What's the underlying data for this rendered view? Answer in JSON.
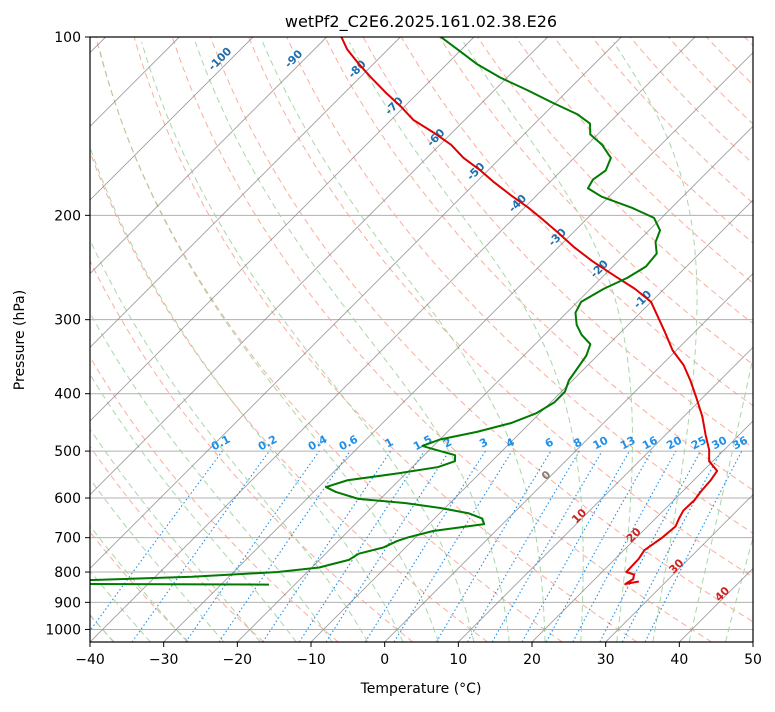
{
  "chart_data": {
    "type": "line",
    "chart_kind": "skew-T log-P diagram",
    "title": "wetPf2_C2E6.2025.161.02.38.E26",
    "xlabel": "Temperature (°C)",
    "ylabel": "Pressure (hPa)",
    "xlim": [
      -40,
      50
    ],
    "ylim": [
      1050,
      100
    ],
    "y_scale": "log",
    "grid": true,
    "x_ticks": [
      -40,
      -30,
      -20,
      -10,
      0,
      10,
      20,
      30,
      40,
      50
    ],
    "x_tick_labels": [
      "−40",
      "−30",
      "−20",
      "−10",
      "0",
      "10",
      "20",
      "30",
      "40",
      "50"
    ],
    "y_ticks": [
      100,
      200,
      300,
      400,
      500,
      600,
      700,
      800,
      900,
      1000
    ],
    "y_tick_labels": [
      "100",
      "200",
      "300",
      "400",
      "500",
      "600",
      "700",
      "800",
      "900",
      "1000"
    ],
    "colors": {
      "temperature": "#e00000",
      "dewpoint": "#007a00",
      "isotherm": "#7f7f7f",
      "dry_adiabat": "#f7a08c",
      "moist_adiabat": "#9fd39f",
      "mixing_ratio": "#1f8fe8",
      "isotherm_label": "#1f6fae",
      "zero_isotherm_label": "#808080",
      "warm_isotherm_label": "#cc2222"
    },
    "isotherm_labels": [
      "-100",
      "-90",
      "-80",
      "-70",
      "-60",
      "-50",
      "-40",
      "-30",
      "-20",
      "-10",
      "0",
      "10",
      "20",
      "30",
      "40"
    ],
    "isotherm_label_values": [
      -100,
      -90,
      -80,
      -70,
      -60,
      -50,
      -40,
      -30,
      -20,
      -10,
      0,
      10,
      20,
      30,
      40
    ],
    "mixing_ratio_labels": [
      "0.1",
      "0.2",
      "0.4",
      "0.6",
      "1",
      "1.5",
      "2",
      "3",
      "4",
      "6",
      "8",
      "10",
      "13",
      "16",
      "20",
      "25",
      "30",
      "36"
    ],
    "series": [
      {
        "key": "temperature",
        "points": [
          [
            26.3,
            830
          ],
          [
            24.8,
            838
          ],
          [
            25.2,
            822
          ],
          [
            24.7,
            808
          ],
          [
            23.3,
            800
          ],
          [
            23.2,
            760
          ],
          [
            22.8,
            735
          ],
          [
            23.5,
            700
          ],
          [
            23.8,
            670
          ],
          [
            23.2,
            650
          ],
          [
            22.7,
            630
          ],
          [
            22.8,
            605
          ],
          [
            22.5,
            585
          ],
          [
            22.3,
            560
          ],
          [
            21.9,
            540
          ],
          [
            19.5,
            520
          ],
          [
            18.0,
            498
          ],
          [
            15.5,
            470
          ],
          [
            12.5,
            437
          ],
          [
            9.0,
            405
          ],
          [
            6.0,
            380
          ],
          [
            3.0,
            358
          ],
          [
            -0.5,
            338
          ],
          [
            -4.0,
            315
          ],
          [
            -7.0,
            297
          ],
          [
            -10.0,
            280
          ],
          [
            -14.0,
            266
          ],
          [
            -18.5,
            253
          ],
          [
            -23.5,
            239
          ],
          [
            -28.0,
            226
          ],
          [
            -32.0,
            214
          ],
          [
            -36.0,
            203
          ],
          [
            -39.5,
            194
          ],
          [
            -43.5,
            185
          ],
          [
            -47.5,
            176
          ],
          [
            -51.0,
            168
          ],
          [
            -55.0,
            160
          ],
          [
            -58.5,
            152
          ],
          [
            -62.5,
            145
          ],
          [
            -67.0,
            138
          ],
          [
            -70.5,
            131
          ],
          [
            -74.5,
            124
          ],
          [
            -78.5,
            117
          ],
          [
            -82.0,
            111
          ],
          [
            -85.5,
            105
          ],
          [
            -88.0,
            100
          ]
        ]
      },
      {
        "key": "dewpoint",
        "points": [
          [
            -23.5,
            840
          ],
          [
            -50.0,
            838
          ],
          [
            -60.0,
            832
          ],
          [
            -48.0,
            825
          ],
          [
            -35.0,
            815
          ],
          [
            -24.0,
            800
          ],
          [
            -19.0,
            786
          ],
          [
            -18.0,
            778
          ],
          [
            -16.0,
            763
          ],
          [
            -15.5,
            745
          ],
          [
            -13.0,
            727
          ],
          [
            -12.0,
            709
          ],
          [
            -11.0,
            699
          ],
          [
            -8.5,
            682
          ],
          [
            -2.5,
            664
          ],
          [
            -3.5,
            650
          ],
          [
            -6.0,
            637
          ],
          [
            -10.5,
            624
          ],
          [
            -16.0,
            612
          ],
          [
            -23.0,
            602
          ],
          [
            -27.0,
            586
          ],
          [
            -29.0,
            575
          ],
          [
            -27.0,
            560
          ],
          [
            -21.0,
            545
          ],
          [
            -16.5,
            532
          ],
          [
            -15.0,
            520
          ],
          [
            -15.8,
            508
          ],
          [
            -19.0,
            498
          ],
          [
            -21.5,
            490
          ],
          [
            -20.0,
            478
          ],
          [
            -16.0,
            464
          ],
          [
            -12.5,
            448
          ],
          [
            -10.5,
            432
          ],
          [
            -9.5,
            414
          ],
          [
            -9.5,
            397
          ],
          [
            -10.5,
            380
          ],
          [
            -11.0,
            362
          ],
          [
            -11.5,
            345
          ],
          [
            -12.5,
            330
          ],
          [
            -15.0,
            318
          ],
          [
            -17.0,
            306
          ],
          [
            -18.8,
            292
          ],
          [
            -19.5,
            280
          ],
          [
            -18.2,
            266
          ],
          [
            -16.5,
            255
          ],
          [
            -15.5,
            244
          ],
          [
            -15.8,
            232
          ],
          [
            -17.5,
            222
          ],
          [
            -18.5,
            212
          ],
          [
            -21.0,
            202
          ],
          [
            -25.5,
            194
          ],
          [
            -31.0,
            186
          ],
          [
            -34.0,
            180
          ],
          [
            -34.5,
            174
          ],
          [
            -34.0,
            168
          ],
          [
            -35.0,
            160
          ],
          [
            -38.0,
            152
          ],
          [
            -41.0,
            146
          ],
          [
            -42.5,
            140
          ],
          [
            -45.5,
            135
          ],
          [
            -50.5,
            129
          ],
          [
            -55.5,
            123
          ],
          [
            -61.0,
            117
          ],
          [
            -66.0,
            111
          ],
          [
            -70.5,
            105
          ],
          [
            -74.5,
            100
          ]
        ]
      }
    ]
  }
}
